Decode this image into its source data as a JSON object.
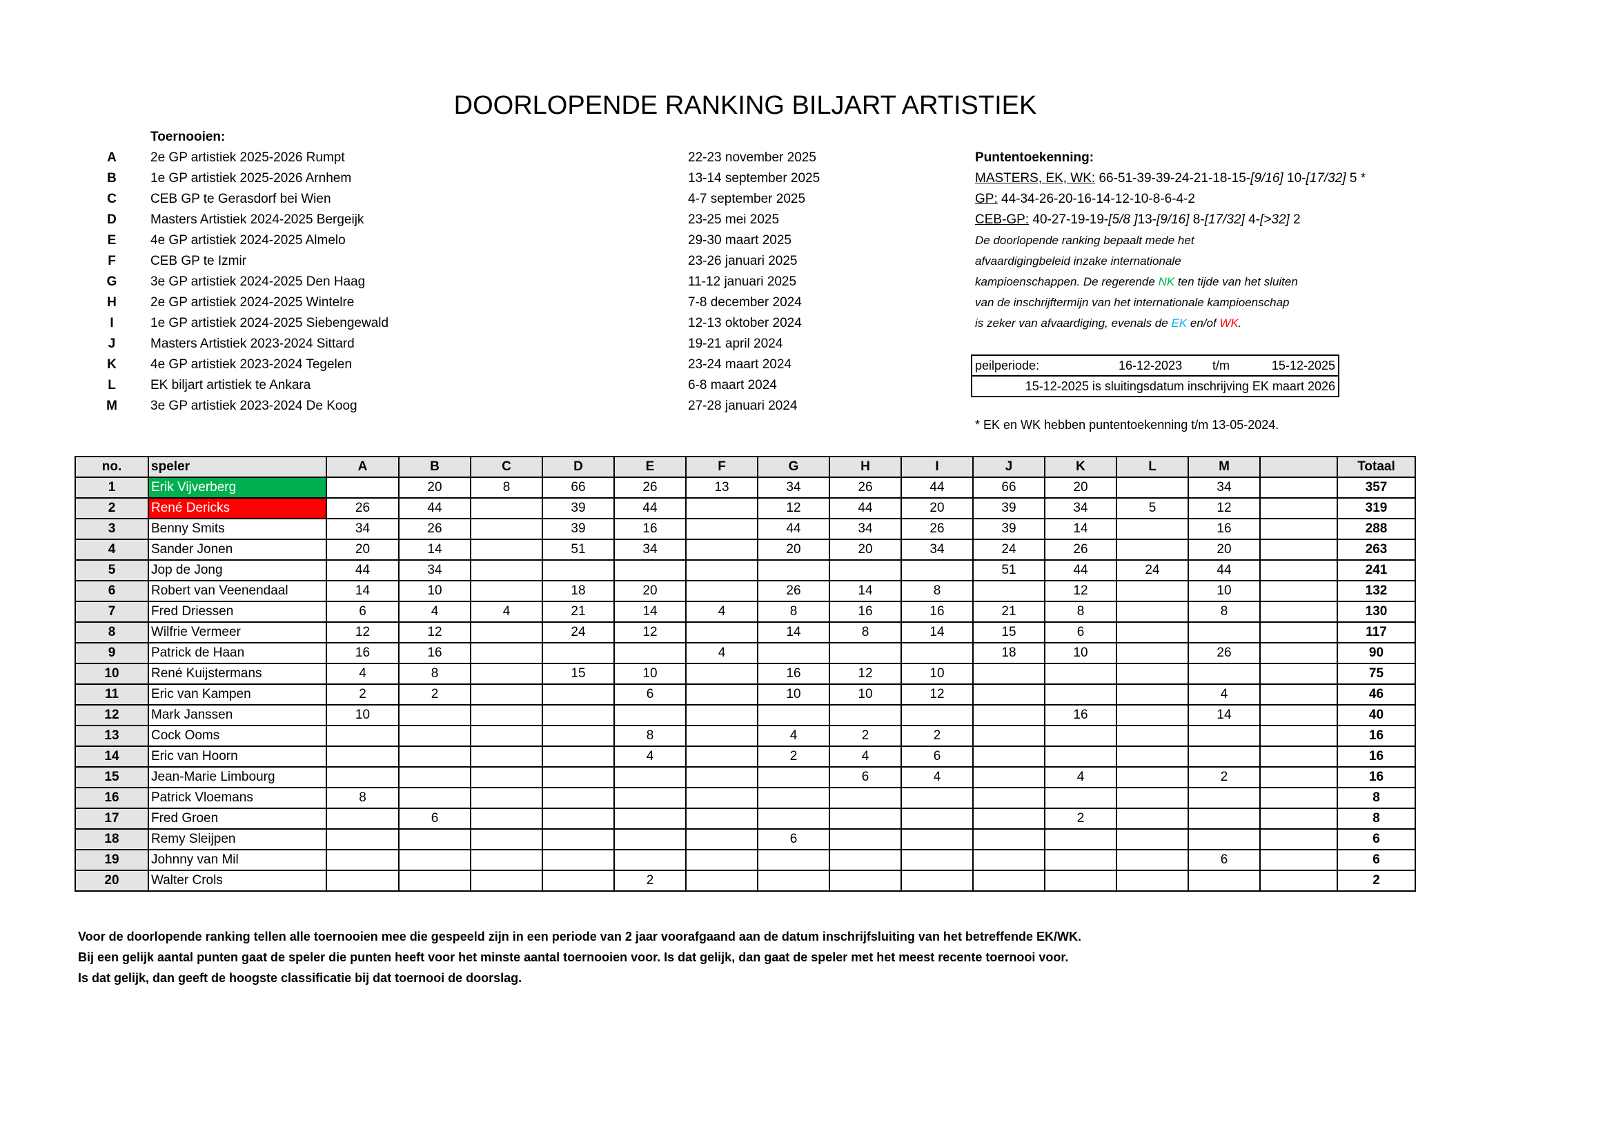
{
  "title": "DOORLOPENDE RANKING BILJART ARTISTIEK",
  "tournaments_label": "Toernooien:",
  "tournaments": [
    {
      "code": "A",
      "name": "2e GP artistiek 2025-2026 Rumpt",
      "date": "22-23 november 2025"
    },
    {
      "code": "B",
      "name": "1e GP artistiek 2025-2026 Arnhem",
      "date": "13-14 september 2025"
    },
    {
      "code": "C",
      "name": "CEB GP te Gerasdorf bei Wien",
      "date": "4-7 september 2025"
    },
    {
      "code": "D",
      "name": "Masters Artistiek 2024-2025 Bergeijk",
      "date": "23-25 mei 2025"
    },
    {
      "code": "E",
      "name": "4e GP artistiek 2024-2025 Almelo",
      "date": "29-30 maart 2025"
    },
    {
      "code": "F",
      "name": "CEB GP te Izmir",
      "date": "23-26 januari 2025"
    },
    {
      "code": "G",
      "name": "3e GP artistiek 2024-2025 Den Haag",
      "date": "11-12 januari 2025"
    },
    {
      "code": "H",
      "name": "2e GP artistiek 2024-2025 Wintelre",
      "date": "7-8 december 2024"
    },
    {
      "code": "I",
      "name": "1e GP artistiek 2024-2025 Siebengewald",
      "date": "12-13 oktober 2024"
    },
    {
      "code": "J",
      "name": "Masters Artistiek 2023-2024 Sittard",
      "date": "19-21 april 2024"
    },
    {
      "code": "K",
      "name": "4e GP artistiek 2023-2024 Tegelen",
      "date": "23-24 maart 2024"
    },
    {
      "code": "L",
      "name": "EK biljart artistiek te Ankara",
      "date": "6-8 maart 2024"
    },
    {
      "code": "M",
      "name": "3e GP artistiek 2023-2024 De Koog",
      "date": "27-28 januari 2024"
    }
  ],
  "points": {
    "heading": "Puntentoekenning:",
    "masters_label": "MASTERS, EK, WK:",
    "masters_a": " 66-51-39-39-24-21-18-15-",
    "masters_b": "[9/16]",
    "masters_c": " 10-",
    "masters_d": "[17/32]",
    "masters_e": " 5 *",
    "gp_label": "GP:",
    "gp_value": " 44-34-26-20-16-14-12-10-8-6-4-2",
    "ceb_label": "CEB-GP:",
    "ceb_a": " 40-27-19-19-",
    "ceb_b": "[5/8 ]",
    "ceb_c": "13-",
    "ceb_d": "[9/16]",
    "ceb_e": " 8-",
    "ceb_f": "[17/32]",
    "ceb_g": " 4-",
    "ceb_h": "[>32]",
    "ceb_i": " 2",
    "note1": "De doorlopende ranking bepaalt mede het",
    "note2": "afvaardigingbeleid inzake internationale",
    "note3a": "kampioenschappen. De regerende ",
    "note3_nk": "NK",
    "note3b": " ten tijde van het sluiten",
    "note4": "van de inschrijftermijn van het internationale kampioenschap",
    "note5a": "is zeker van afvaardiging, evenals de ",
    "note5_ek": "EK",
    "note5b": " en/of ",
    "note5_wk": "WK",
    "note5c": "."
  },
  "colors": {
    "nk": "#00b050",
    "ek": "#00b0f0",
    "wk": "#ff0000",
    "first_place": "#00b050",
    "second_place": "#ff0000",
    "header_bg": "#e4e4e4"
  },
  "peilperiode": {
    "label": "peilperiode:",
    "from": "16-12-2023",
    "sep": "t/m",
    "to": "15-12-2025",
    "closing": "15-12-2025 is sluitingsdatum inschrijving EK maart 2026"
  },
  "footnote": "* EK en WK hebben puntentoekenning t/m 13-05-2024.",
  "table": {
    "headers": [
      "no.",
      "speler",
      "A",
      "B",
      "C",
      "D",
      "E",
      "F",
      "G",
      "H",
      "I",
      "J",
      "K",
      "L",
      "M",
      "",
      "Totaal"
    ],
    "rows": [
      {
        "no": "1",
        "name": "Erik Vijverberg",
        "scores": [
          "",
          "20",
          "8",
          "66",
          "26",
          "13",
          "34",
          "26",
          "44",
          "66",
          "20",
          "",
          "34",
          ""
        ],
        "total": "357"
      },
      {
        "no": "2",
        "name": "René Dericks",
        "scores": [
          "26",
          "44",
          "",
          "39",
          "44",
          "",
          "12",
          "44",
          "20",
          "39",
          "34",
          "5",
          "12",
          ""
        ],
        "total": "319"
      },
      {
        "no": "3",
        "name": "Benny Smits",
        "scores": [
          "34",
          "26",
          "",
          "39",
          "16",
          "",
          "44",
          "34",
          "26",
          "39",
          "14",
          "",
          "16",
          ""
        ],
        "total": "288"
      },
      {
        "no": "4",
        "name": "Sander Jonen",
        "scores": [
          "20",
          "14",
          "",
          "51",
          "34",
          "",
          "20",
          "20",
          "34",
          "24",
          "26",
          "",
          "20",
          ""
        ],
        "total": "263"
      },
      {
        "no": "5",
        "name": "Jop de Jong",
        "scores": [
          "44",
          "34",
          "",
          "",
          "",
          "",
          "",
          "",
          "",
          "51",
          "44",
          "24",
          "44",
          ""
        ],
        "total": "241"
      },
      {
        "no": "6",
        "name": "Robert van Veenendaal",
        "scores": [
          "14",
          "10",
          "",
          "18",
          "20",
          "",
          "26",
          "14",
          "8",
          "",
          "12",
          "",
          "10",
          ""
        ],
        "total": "132"
      },
      {
        "no": "7",
        "name": "Fred Driessen",
        "scores": [
          "6",
          "4",
          "4",
          "21",
          "14",
          "4",
          "8",
          "16",
          "16",
          "21",
          "8",
          "",
          "8",
          ""
        ],
        "total": "130"
      },
      {
        "no": "8",
        "name": "Wilfrie Vermeer",
        "scores": [
          "12",
          "12",
          "",
          "24",
          "12",
          "",
          "14",
          "8",
          "14",
          "15",
          "6",
          "",
          "",
          ""
        ],
        "total": "117"
      },
      {
        "no": "9",
        "name": "Patrick de Haan",
        "scores": [
          "16",
          "16",
          "",
          "",
          "",
          "4",
          "",
          "",
          "",
          "18",
          "10",
          "",
          "26",
          ""
        ],
        "total": "90"
      },
      {
        "no": "10",
        "name": "René Kuijstermans",
        "scores": [
          "4",
          "8",
          "",
          "15",
          "10",
          "",
          "16",
          "12",
          "10",
          "",
          "",
          "",
          "",
          ""
        ],
        "total": "75"
      },
      {
        "no": "11",
        "name": "Eric van Kampen",
        "scores": [
          "2",
          "2",
          "",
          "",
          "6",
          "",
          "10",
          "10",
          "12",
          "",
          "",
          "",
          "4",
          ""
        ],
        "total": "46"
      },
      {
        "no": "12",
        "name": "Mark Janssen",
        "scores": [
          "10",
          "",
          "",
          "",
          "",
          "",
          "",
          "",
          "",
          "",
          "16",
          "",
          "14",
          ""
        ],
        "total": "40"
      },
      {
        "no": "13",
        "name": "Cock Ooms",
        "scores": [
          "",
          "",
          "",
          "",
          "8",
          "",
          "4",
          "2",
          "2",
          "",
          "",
          "",
          "",
          ""
        ],
        "total": "16"
      },
      {
        "no": "14",
        "name": "Eric van Hoorn",
        "scores": [
          "",
          "",
          "",
          "",
          "4",
          "",
          "2",
          "4",
          "6",
          "",
          "",
          "",
          "",
          ""
        ],
        "total": "16"
      },
      {
        "no": "15",
        "name": "Jean-Marie Limbourg",
        "scores": [
          "",
          "",
          "",
          "",
          "",
          "",
          "",
          "6",
          "4",
          "",
          "4",
          "",
          "2",
          ""
        ],
        "total": "16"
      },
      {
        "no": "16",
        "name": "Patrick Vloemans",
        "scores": [
          "8",
          "",
          "",
          "",
          "",
          "",
          "",
          "",
          "",
          "",
          "",
          "",
          "",
          ""
        ],
        "total": "8"
      },
      {
        "no": "17",
        "name": "Fred Groen",
        "scores": [
          "",
          "6",
          "",
          "",
          "",
          "",
          "",
          "",
          "",
          "",
          "2",
          "",
          "",
          ""
        ],
        "total": "8"
      },
      {
        "no": "18",
        "name": "Remy Sleijpen",
        "scores": [
          "",
          "",
          "",
          "",
          "",
          "",
          "6",
          "",
          "",
          "",
          "",
          "",
          "",
          ""
        ],
        "total": "6"
      },
      {
        "no": "19",
        "name": "Johnny van Mil",
        "scores": [
          "",
          "",
          "",
          "",
          "",
          "",
          "",
          "",
          "",
          "",
          "",
          "",
          "6",
          ""
        ],
        "total": "6"
      },
      {
        "no": "20",
        "name": "Walter Crols",
        "scores": [
          "",
          "",
          "",
          "",
          "2",
          "",
          "",
          "",
          "",
          "",
          "",
          "",
          "",
          ""
        ],
        "total": "2"
      }
    ]
  },
  "rules": [
    "Voor de doorlopende ranking tellen alle toernooien mee die gespeeld zijn in een periode van 2 jaar voorafgaand aan de datum inschrijfsluiting van het betreffende EK/WK.",
    "Bij een gelijk aantal punten gaat de speler die punten heeft voor het minste aantal toernooien voor. Is dat gelijk, dan gaat de speler met het meest recente toernooi voor.",
    "Is dat gelijk, dan geeft de hoogste classificatie bij dat toernooi de doorslag."
  ]
}
